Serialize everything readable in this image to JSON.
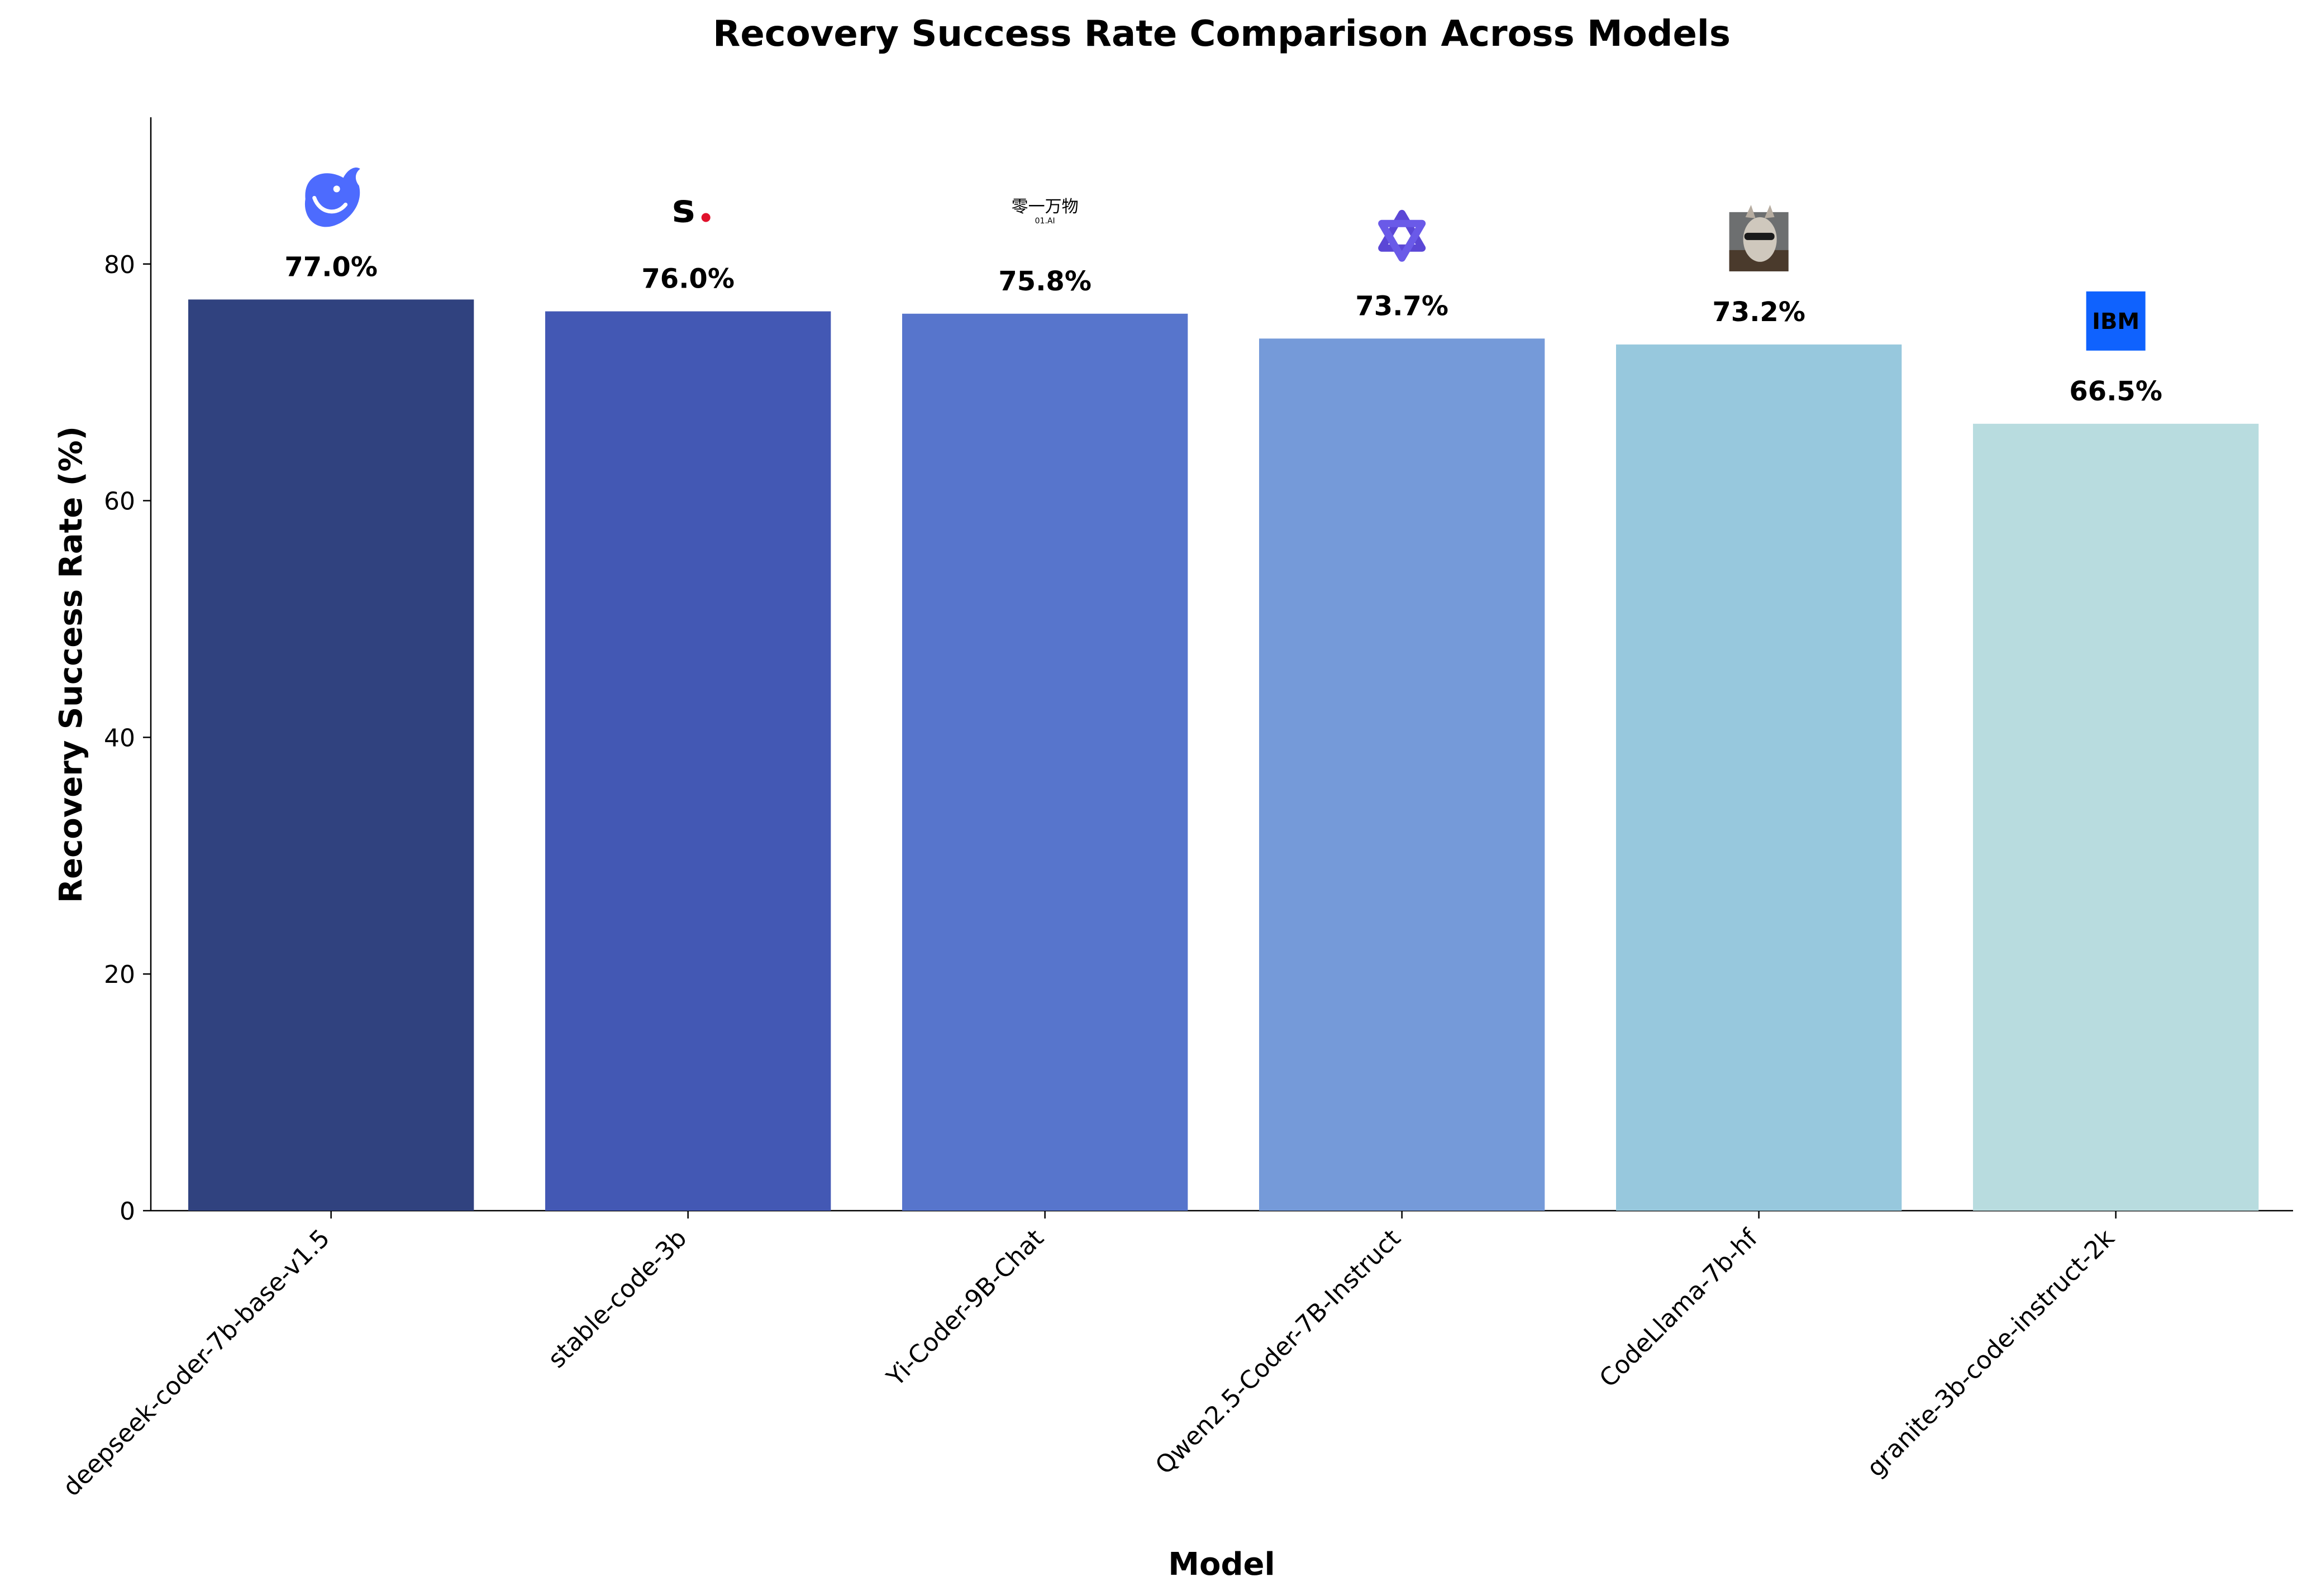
{
  "chart_data": {
    "type": "bar",
    "title": "Recovery Success Rate Comparison Across Models",
    "xlabel": "Model",
    "ylabel": "Recovery Success Rate (%)",
    "categories": [
      "deepseek-coder-7b-base-v1.5",
      "stable-code-3b",
      "Yi-Coder-9B-Chat",
      "Qwen2.5-Coder-7B-Instruct",
      "CodeLlama-7b-hf",
      "granite-3b-code-instruct-2k"
    ],
    "values": [
      77.0,
      76.0,
      75.8,
      73.7,
      73.2,
      66.5
    ],
    "value_labels": [
      "77.0%",
      "76.0%",
      "75.8%",
      "73.7%",
      "73.2%",
      "66.5%"
    ],
    "bar_colors": [
      "#30427f",
      "#4358b4",
      "#5775cc",
      "#759ad9",
      "#97c8dd",
      "#b8dcdf"
    ],
    "logos": [
      "deepseek-whale-icon",
      "stability-s-icon",
      "01ai-wordmark-icon",
      "qwen-star-icon",
      "llama-photo-icon",
      "ibm-logo-icon"
    ],
    "logo_text": {
      "stability": "s",
      "yi_top": "零一万物",
      "yi_bottom": "01.AI",
      "ibm": "IBM"
    },
    "ylim": [
      0,
      92.4
    ],
    "yticks": [
      0,
      20,
      40,
      60,
      80
    ],
    "grid": false,
    "legend": "none"
  }
}
